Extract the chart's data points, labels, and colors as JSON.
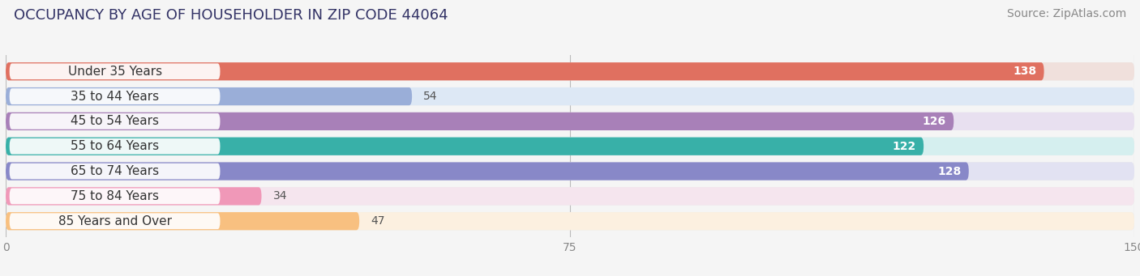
{
  "title": "OCCUPANCY BY AGE OF HOUSEHOLDER IN ZIP CODE 44064",
  "source": "Source: ZipAtlas.com",
  "categories": [
    "Under 35 Years",
    "35 to 44 Years",
    "45 to 54 Years",
    "55 to 64 Years",
    "65 to 74 Years",
    "75 to 84 Years",
    "85 Years and Over"
  ],
  "values": [
    138,
    54,
    126,
    122,
    128,
    34,
    47
  ],
  "bar_colors": [
    "#E07060",
    "#9AAED8",
    "#A880B8",
    "#38B0A8",
    "#8888C8",
    "#F098B8",
    "#F8C080"
  ],
  "bar_bg_colors": [
    "#F0E0DC",
    "#DDE8F5",
    "#E8E0F0",
    "#D5EFEF",
    "#E2E2F2",
    "#F5E5EE",
    "#FCF0E0"
  ],
  "xlim": [
    0,
    150
  ],
  "xticks": [
    0,
    75,
    150
  ],
  "title_fontsize": 13,
  "source_fontsize": 10,
  "cat_fontsize": 11,
  "value_fontsize": 10,
  "background_color": "#f5f5f5",
  "bar_row_bg": "#e8e8e8"
}
